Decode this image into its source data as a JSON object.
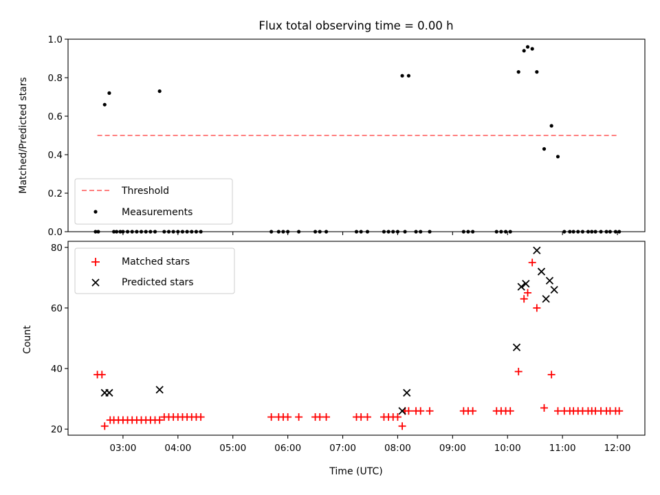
{
  "chart_data": [
    {
      "type": "scatter",
      "title": "Flux total observing time = 0.00 h",
      "xlabel": "",
      "ylabel": "Matched/Predicted stars",
      "ylim": [
        0,
        1.0
      ],
      "yticks": [
        "0.0",
        "0.2",
        "0.4",
        "0.6",
        "0.8",
        "1.0"
      ],
      "xlim": [
        "02:00",
        "12:30"
      ],
      "legend_position": "lower-left",
      "threshold": {
        "name": "Threshold",
        "value": 0.5,
        "x_start": "02:32",
        "x_end": "12:00",
        "color": "#ff7f7f",
        "style": "dashed"
      },
      "measurements": {
        "name": "Measurements",
        "color": "#000000",
        "x": [
          "02:30",
          "02:33",
          "02:40",
          "02:45",
          "02:50",
          "02:53",
          "02:57",
          "03:00",
          "03:05",
          "03:10",
          "03:15",
          "03:20",
          "03:25",
          "03:30",
          "03:35",
          "03:40",
          "03:45",
          "03:50",
          "03:55",
          "04:00",
          "04:05",
          "04:10",
          "04:15",
          "04:20",
          "04:25",
          "05:42",
          "05:50",
          "05:55",
          "06:00",
          "06:12",
          "06:30",
          "06:35",
          "06:42",
          "07:15",
          "07:20",
          "07:27",
          "07:45",
          "07:50",
          "07:55",
          "08:00",
          "08:05",
          "08:08",
          "08:12",
          "08:20",
          "08:25",
          "08:35",
          "09:12",
          "09:17",
          "09:22",
          "09:48",
          "09:53",
          "09:58",
          "10:03",
          "10:12",
          "10:18",
          "10:22",
          "10:27",
          "10:32",
          "10:40",
          "10:48",
          "10:55",
          "11:02",
          "11:08",
          "11:12",
          "11:17",
          "11:22",
          "11:28",
          "11:32",
          "11:36",
          "11:42",
          "11:48",
          "11:52",
          "11:58",
          "12:02"
        ],
        "y": [
          0,
          0,
          0.66,
          0.72,
          0,
          0,
          0,
          0,
          0,
          0,
          0,
          0,
          0,
          0,
          0,
          0.73,
          0,
          0,
          0,
          0,
          0,
          0,
          0,
          0,
          0,
          0,
          0,
          0,
          0,
          0,
          0,
          0,
          0,
          0,
          0,
          0,
          0,
          0,
          0,
          0,
          0.81,
          0,
          0.81,
          0,
          0,
          0,
          0,
          0,
          0,
          0,
          0,
          0,
          0,
          0.83,
          0.94,
          0.96,
          0.95,
          0.83,
          0.43,
          0.55,
          0.39,
          0,
          0,
          0,
          0,
          0,
          0,
          0,
          0,
          0,
          0,
          0,
          0,
          0
        ]
      }
    },
    {
      "type": "scatter",
      "title": "",
      "xlabel": "Time (UTC)",
      "ylabel": "Count",
      "ylim": [
        18,
        82
      ],
      "yticks": [
        "20",
        "40",
        "60",
        "80"
      ],
      "xlim": [
        "02:00",
        "12:30"
      ],
      "xticks": [
        "03:00",
        "04:00",
        "05:00",
        "06:00",
        "07:00",
        "08:00",
        "09:00",
        "10:00",
        "11:00",
        "12:00"
      ],
      "legend_position": "upper-left",
      "series": [
        {
          "name": "Matched stars",
          "marker": "plus",
          "color": "#ff0000",
          "x": [
            "02:32",
            "02:37",
            "02:40",
            "02:46",
            "02:50",
            "02:55",
            "03:00",
            "03:05",
            "03:10",
            "03:15",
            "03:20",
            "03:25",
            "03:30",
            "03:35",
            "03:40",
            "03:45",
            "03:50",
            "03:55",
            "04:00",
            "04:05",
            "04:10",
            "04:15",
            "04:20",
            "04:25",
            "05:42",
            "05:50",
            "05:55",
            "06:00",
            "06:12",
            "06:30",
            "06:35",
            "06:42",
            "07:15",
            "07:20",
            "07:27",
            "07:45",
            "07:50",
            "07:55",
            "08:00",
            "08:05",
            "08:08",
            "08:12",
            "08:20",
            "08:25",
            "08:35",
            "09:12",
            "09:17",
            "09:22",
            "09:48",
            "09:53",
            "09:58",
            "10:03",
            "10:12",
            "10:18",
            "10:22",
            "10:27",
            "10:32",
            "10:40",
            "10:48",
            "10:55",
            "11:02",
            "11:08",
            "11:12",
            "11:17",
            "11:22",
            "11:28",
            "11:32",
            "11:36",
            "11:42",
            "11:48",
            "11:52",
            "11:58",
            "12:02"
          ],
          "y": [
            38,
            38,
            21,
            23,
            23,
            23,
            23,
            23,
            23,
            23,
            23,
            23,
            23,
            23,
            23,
            24,
            24,
            24,
            24,
            24,
            24,
            24,
            24,
            24,
            24,
            24,
            24,
            24,
            24,
            24,
            24,
            24,
            24,
            24,
            24,
            24,
            24,
            24,
            24,
            21,
            26,
            26,
            26,
            26,
            26,
            26,
            26,
            26,
            26,
            26,
            26,
            26,
            39,
            63,
            65,
            75,
            60,
            27,
            38,
            26,
            26,
            26,
            26,
            26,
            26,
            26,
            26,
            26,
            26,
            26,
            26,
            26,
            26
          ]
        },
        {
          "name": "Predicted stars",
          "marker": "x",
          "color": "#000000",
          "x": [
            "02:40",
            "02:45",
            "03:40",
            "08:05",
            "08:10",
            "10:10",
            "10:15",
            "10:20",
            "10:32",
            "10:37",
            "10:42",
            "10:46",
            "10:51"
          ],
          "y": [
            32,
            32,
            33,
            26,
            32,
            47,
            67,
            68,
            79,
            72,
            63,
            69,
            66
          ]
        }
      ]
    }
  ]
}
